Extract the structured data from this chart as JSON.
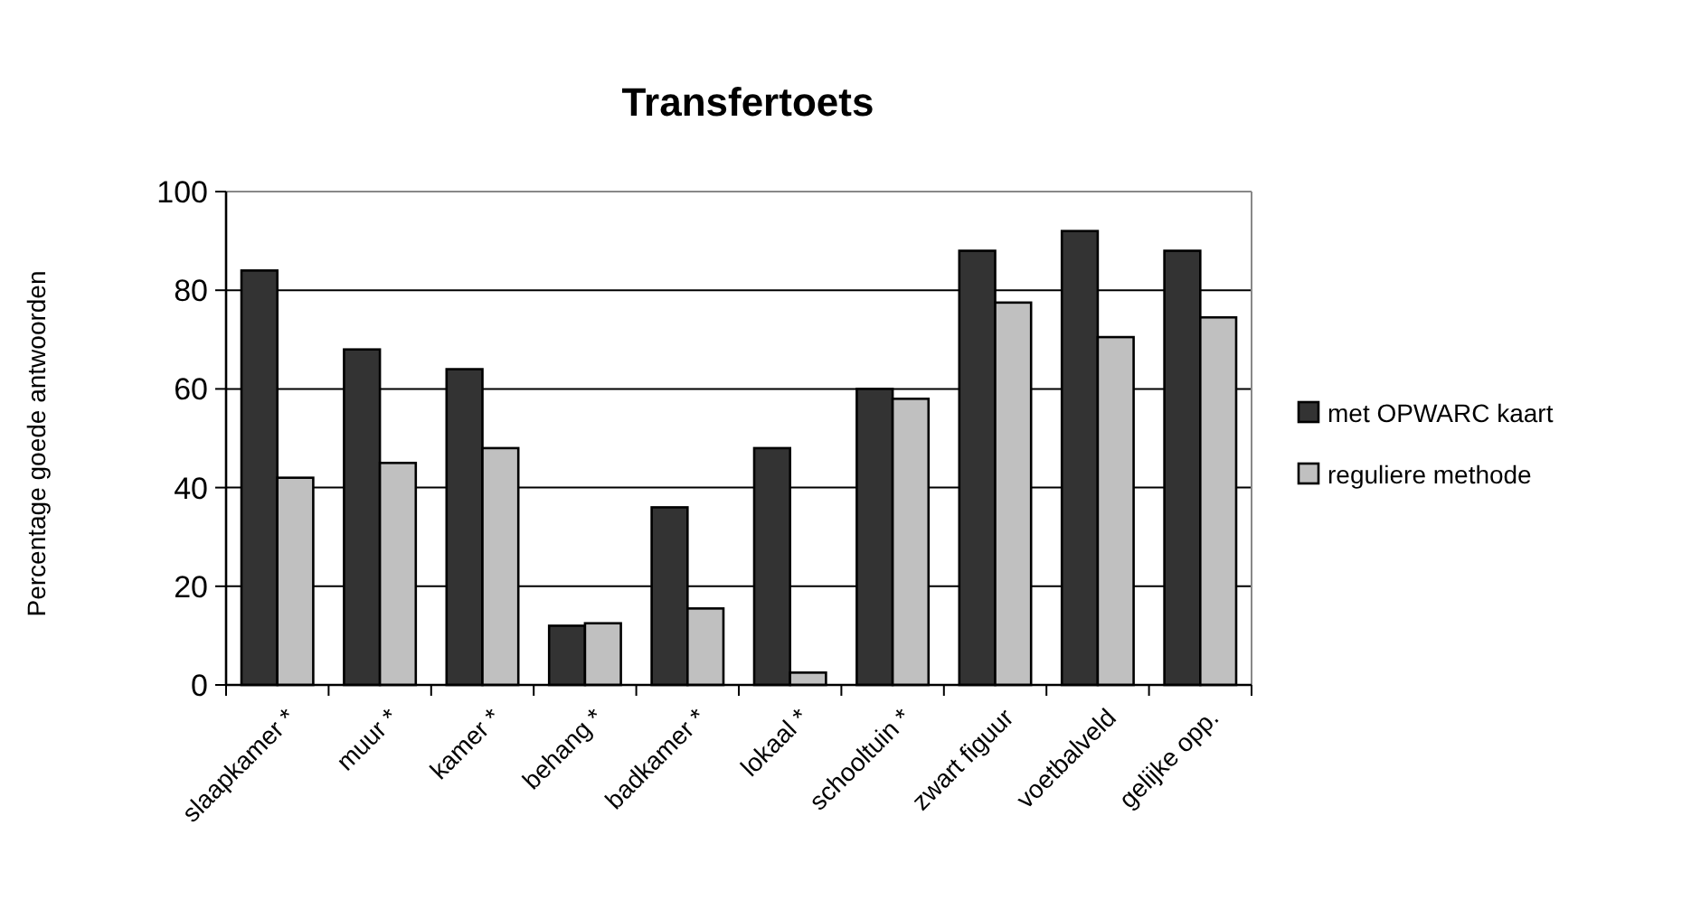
{
  "chart_data": {
    "type": "bar",
    "title": "Transfertoets",
    "ylabel": "Percentage goede antwoorden",
    "categories": [
      "slaapkamer *",
      "muur *",
      "kamer *",
      "behang *",
      "badkamer *",
      "lokaal *",
      "schooltuin *",
      "zwart figuur",
      "voetbalveld",
      "gelijke opp."
    ],
    "series": [
      {
        "name": "met OPWARC kaart",
        "color": "#333333",
        "values": [
          84,
          68,
          64,
          12,
          36,
          48,
          60,
          88,
          92,
          88
        ]
      },
      {
        "name": "reguliere methode",
        "color": "#c0c0c0",
        "values": [
          42,
          45,
          48,
          12.5,
          15.5,
          2.5,
          58,
          77.5,
          70.5,
          74.5
        ]
      }
    ],
    "ylim": [
      0,
      100
    ],
    "yticks": [
      0,
      20,
      40,
      60,
      80,
      100
    ],
    "grid": "y",
    "legend": "right"
  }
}
